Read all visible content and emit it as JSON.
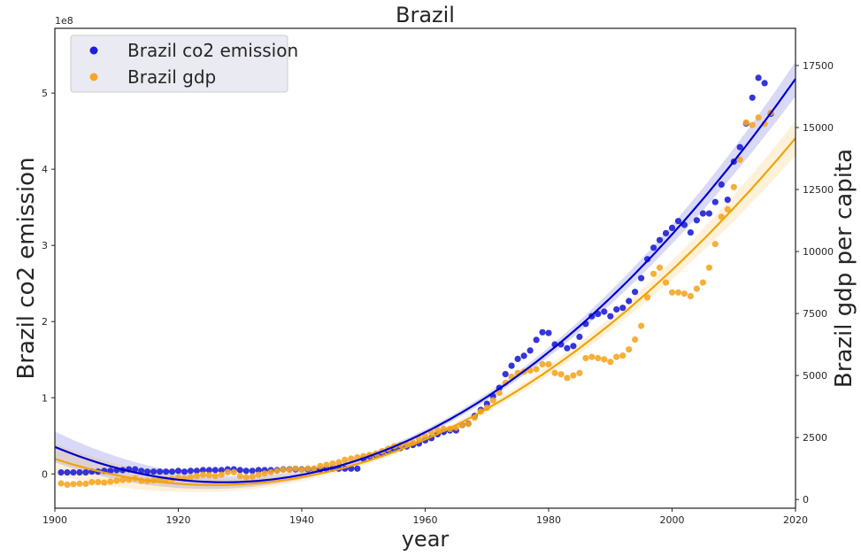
{
  "chart_data": {
    "type": "scatter",
    "title": "Brazil",
    "xlabel": "year",
    "ylabel_left": "Brazil co2 emission",
    "ylabel_right": "Brazil gdp per capita",
    "left_axis_offset_text": "1e8",
    "xlim": [
      1900,
      2020
    ],
    "ylim_left": [
      -0.45,
      5.85
    ],
    "ylim_right": [
      -350,
      19000
    ],
    "x_ticks": [
      "1900",
      "1920",
      "1940",
      "1960",
      "1980",
      "2000",
      "2020"
    ],
    "y_left_ticks": [
      "0",
      "1",
      "2",
      "3",
      "4",
      "5"
    ],
    "y_right_ticks": [
      "0",
      "2500",
      "5000",
      "7500",
      "10000",
      "12500",
      "15000",
      "17500"
    ],
    "legend_position": "upper-left",
    "grid": false,
    "series": [
      {
        "name": "Brazil co2 emission",
        "axis": "left",
        "color": "#1f1fd6",
        "line_color": "#0000cc",
        "x": [
          1901,
          1902,
          1903,
          1904,
          1905,
          1906,
          1907,
          1908,
          1909,
          1910,
          1911,
          1912,
          1913,
          1914,
          1915,
          1916,
          1917,
          1918,
          1919,
          1920,
          1921,
          1922,
          1923,
          1924,
          1925,
          1926,
          1927,
          1928,
          1929,
          1930,
          1931,
          1932,
          1933,
          1934,
          1935,
          1936,
          1937,
          1938,
          1939,
          1940,
          1941,
          1942,
          1943,
          1944,
          1945,
          1946,
          1947,
          1948,
          1949,
          1950,
          1951,
          1952,
          1953,
          1954,
          1955,
          1956,
          1957,
          1958,
          1959,
          1960,
          1961,
          1962,
          1963,
          1964,
          1965,
          1966,
          1967,
          1968,
          1969,
          1970,
          1971,
          1972,
          1973,
          1974,
          1975,
          1976,
          1977,
          1978,
          1979,
          1980,
          1981,
          1982,
          1983,
          1984,
          1985,
          1986,
          1987,
          1988,
          1989,
          1990,
          1991,
          1992,
          1993,
          1994,
          1995,
          1996,
          1997,
          1998,
          1999,
          2000,
          2001,
          2002,
          2003,
          2004,
          2005,
          2006,
          2007,
          2008,
          2009,
          2010,
          2011,
          2012,
          2013,
          2014,
          2015,
          2016
        ],
        "y": [
          0.02,
          0.02,
          0.02,
          0.02,
          0.02,
          0.03,
          0.03,
          0.04,
          0.04,
          0.05,
          0.05,
          0.06,
          0.06,
          0.04,
          0.03,
          0.03,
          0.03,
          0.03,
          0.03,
          0.04,
          0.03,
          0.04,
          0.04,
          0.05,
          0.05,
          0.05,
          0.05,
          0.06,
          0.06,
          0.05,
          0.04,
          0.04,
          0.05,
          0.05,
          0.05,
          0.05,
          0.06,
          0.06,
          0.06,
          0.06,
          0.06,
          0.06,
          0.06,
          0.07,
          0.07,
          0.07,
          0.07,
          0.07,
          0.07,
          0.2,
          0.23,
          0.25,
          0.27,
          0.3,
          0.32,
          0.34,
          0.36,
          0.38,
          0.4,
          0.44,
          0.47,
          0.52,
          0.55,
          0.57,
          0.57,
          0.64,
          0.66,
          0.76,
          0.84,
          0.92,
          1.02,
          1.13,
          1.31,
          1.42,
          1.51,
          1.55,
          1.62,
          1.76,
          1.86,
          1.85,
          1.7,
          1.7,
          1.65,
          1.68,
          1.8,
          1.97,
          2.07,
          2.1,
          2.13,
          2.07,
          2.16,
          2.18,
          2.27,
          2.39,
          2.57,
          2.82,
          2.97,
          3.07,
          3.16,
          3.23,
          3.32,
          3.27,
          3.17,
          3.33,
          3.42,
          3.42,
          3.57,
          3.8,
          3.6,
          4.1,
          4.29,
          4.6,
          4.94,
          5.2,
          5.13,
          4.73
        ]
      },
      {
        "name": "Brazil gdp",
        "axis": "right",
        "color": "#f5a623",
        "line_color": "#f0a30a",
        "x": [
          1901,
          1902,
          1903,
          1904,
          1905,
          1906,
          1907,
          1908,
          1909,
          1910,
          1911,
          1912,
          1913,
          1914,
          1915,
          1916,
          1917,
          1918,
          1919,
          1920,
          1921,
          1922,
          1923,
          1924,
          1925,
          1926,
          1927,
          1928,
          1929,
          1930,
          1931,
          1932,
          1933,
          1934,
          1935,
          1936,
          1937,
          1938,
          1939,
          1940,
          1941,
          1942,
          1943,
          1944,
          1945,
          1946,
          1947,
          1948,
          1949,
          1950,
          1951,
          1952,
          1953,
          1954,
          1955,
          1956,
          1957,
          1958,
          1959,
          1960,
          1961,
          1962,
          1963,
          1964,
          1965,
          1966,
          1967,
          1968,
          1969,
          1970,
          1971,
          1972,
          1973,
          1974,
          1975,
          1976,
          1977,
          1978,
          1979,
          1980,
          1981,
          1982,
          1983,
          1984,
          1985,
          1986,
          1987,
          1988,
          1989,
          1990,
          1991,
          1992,
          1993,
          1994,
          1995,
          1996,
          1997,
          1998,
          1999,
          2000,
          2001,
          2002,
          2003,
          2004,
          2005,
          2006,
          2007,
          2008,
          2009,
          2010,
          2011,
          2012,
          2013,
          2014,
          2015,
          2016
        ],
        "y": [
          650,
          600,
          620,
          640,
          630,
          700,
          700,
          680,
          720,
          760,
          790,
          800,
          850,
          760,
          750,
          770,
          820,
          800,
          830,
          880,
          850,
          900,
          950,
          1000,
          980,
          950,
          1000,
          1100,
          1100,
          950,
          900,
          930,
          1000,
          1050,
          1100,
          1150,
          1200,
          1200,
          1250,
          1200,
          1250,
          1250,
          1350,
          1400,
          1450,
          1500,
          1600,
          1650,
          1700,
          1750,
          1800,
          1850,
          1950,
          2050,
          2150,
          2200,
          2250,
          2300,
          2450,
          2550,
          2700,
          2800,
          2850,
          2850,
          2900,
          3000,
          3050,
          3300,
          3550,
          3700,
          4000,
          4300,
          4700,
          4950,
          5100,
          5150,
          5200,
          5250,
          5450,
          5450,
          5100,
          5050,
          4900,
          5000,
          5100,
          5700,
          5750,
          5700,
          5650,
          5550,
          5750,
          5800,
          6050,
          6450,
          7000,
          8150,
          9100,
          9350,
          8750,
          8350,
          8350,
          8300,
          8200,
          8500,
          8750,
          9350,
          10300,
          11400,
          11700,
          12600,
          13700,
          15200,
          15100,
          15400,
          15150,
          15600
        ]
      }
    ]
  }
}
